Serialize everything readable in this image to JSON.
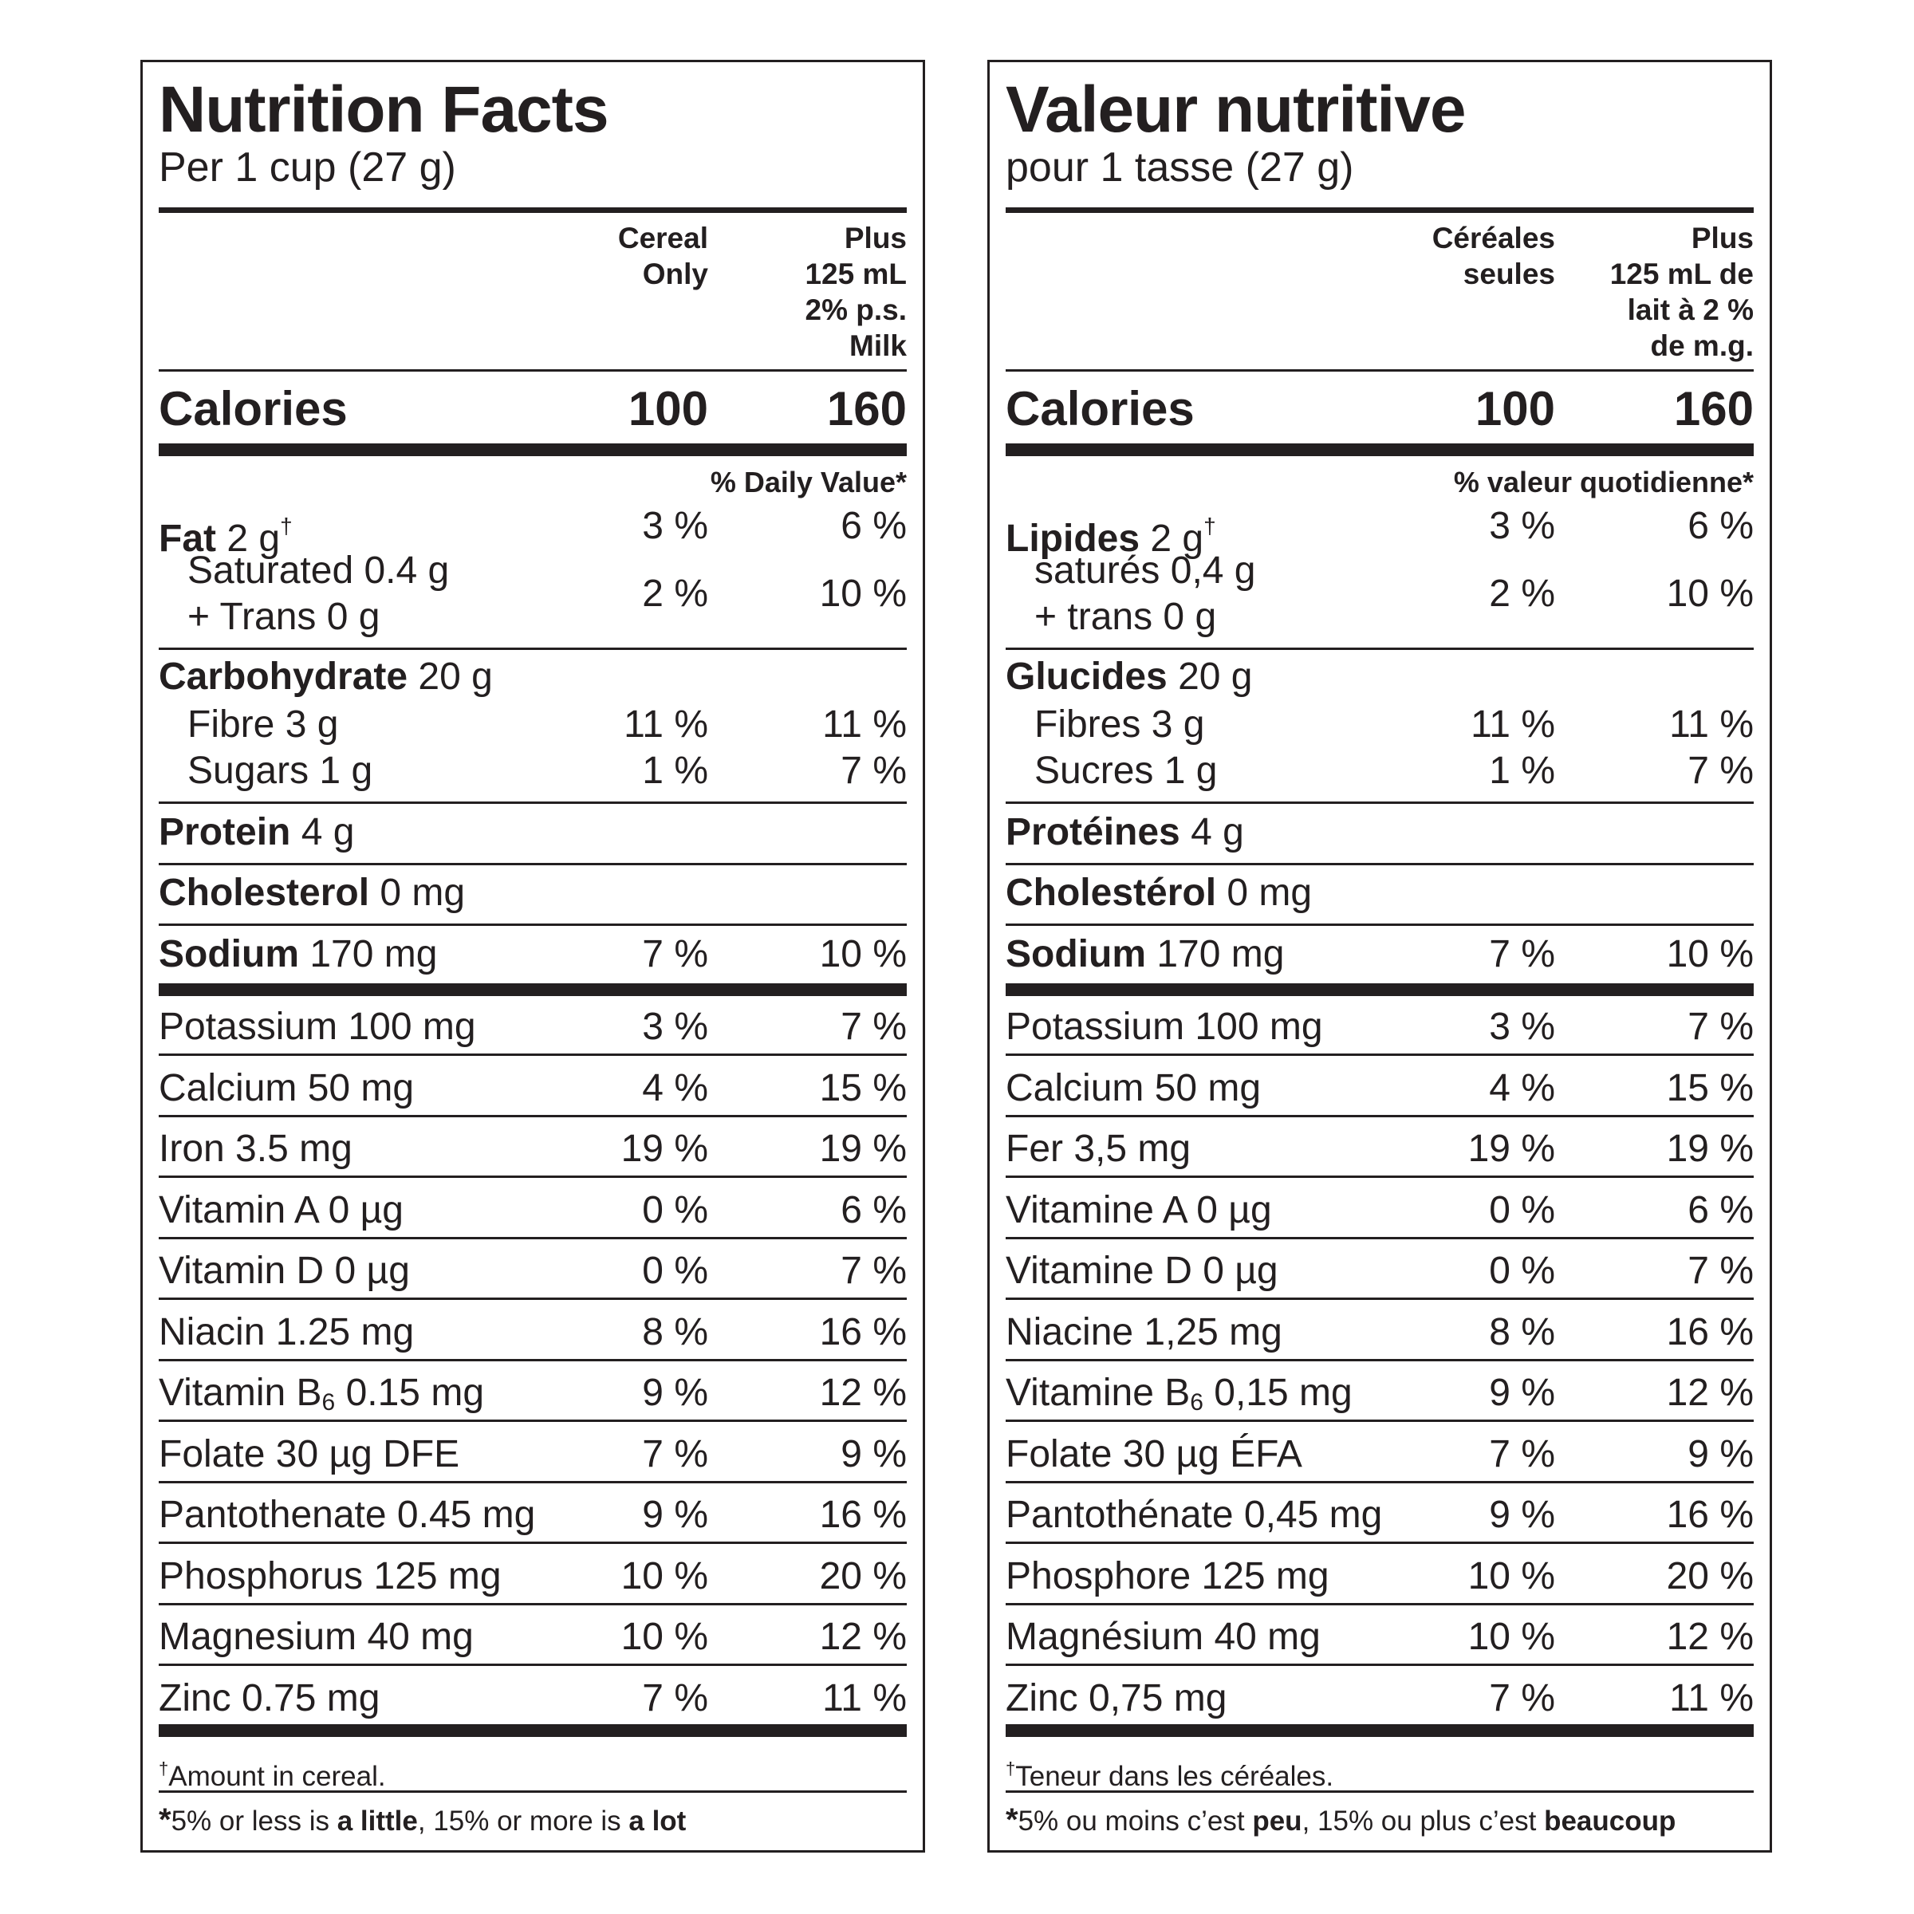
{
  "english": {
    "title": "Nutrition Facts",
    "serving": "Per 1 cup (27 g)",
    "col1_header": "Cereal\nOnly",
    "col2_header": "Plus\n125 mL\n2% p.s.\nMilk",
    "calories_label": "Calories",
    "calories_col1": "100",
    "calories_col2": "160",
    "dv_header": "% Daily Value*",
    "fat": {
      "label": "Fat",
      "amount": " 2 g",
      "dagger": "†",
      "col1": "3 %",
      "col2": "6 %"
    },
    "saturated": {
      "line1": "Saturated 0.4 g",
      "line2": "+ Trans 0 g",
      "col1": "2 %",
      "col2": "10 %"
    },
    "carbohydrate": {
      "label": "Carbohydrate",
      "amount": " 20 g"
    },
    "fibre": {
      "label": "Fibre 3 g",
      "col1": "11 %",
      "col2": "11 %"
    },
    "sugars": {
      "label": "Sugars 1 g",
      "col1": "1 %",
      "col2": "7 %"
    },
    "protein": {
      "label": "Protein",
      "amount": " 4 g"
    },
    "cholesterol": {
      "label": "Cholesterol",
      "amount": " 0 mg"
    },
    "sodium": {
      "label": "Sodium",
      "amount": " 170 mg",
      "col1": "7 %",
      "col2": "10 %"
    },
    "micros": [
      {
        "label": "Potassium 100 mg",
        "col1": "3 %",
        "col2": "7 %"
      },
      {
        "label": "Calcium 50 mg",
        "col1": "4 %",
        "col2": "15 %"
      },
      {
        "label": "Iron 3.5 mg",
        "col1": "19 %",
        "col2": "19 %"
      },
      {
        "label": "Vitamin A 0 µg",
        "col1": "0 %",
        "col2": "6 %"
      },
      {
        "label": "Vitamin D 0 µg",
        "col1": "0 %",
        "col2": "7 %"
      },
      {
        "label": "Niacin 1.25 mg",
        "col1": "8 %",
        "col2": "16 %"
      },
      {
        "label_pre": "Vitamin B",
        "label_sub": "6",
        "label_post": " 0.15 mg",
        "col1": "9 %",
        "col2": "12 %"
      },
      {
        "label": "Folate 30 µg DFE",
        "col1": "7 %",
        "col2": "9 %"
      },
      {
        "label": "Pantothenate 0.45 mg",
        "col1": "9 %",
        "col2": "16 %"
      },
      {
        "label": "Phosphorus 125 mg",
        "col1": "10 %",
        "col2": "20 %"
      },
      {
        "label": "Magnesium 40 mg",
        "col1": "10 %",
        "col2": "12 %"
      },
      {
        "label": "Zinc 0.75 mg",
        "col1": "7 %",
        "col2": "11 %"
      }
    ],
    "footnote_dagger": "†",
    "footnote_text": "Amount in cereal.",
    "dv_note": {
      "asterisk": "*",
      "t1": "5% or less is ",
      "b1": "a little",
      "t2": ", 15% or more is ",
      "b2": "a lot"
    }
  },
  "french": {
    "title": "Valeur nutritive",
    "serving": "pour 1 tasse (27 g)",
    "col1_header": "Céréales\nseules",
    "col2_header": "Plus\n125 mL de\nlait à 2 %\nde m.g.",
    "calories_label": "Calories",
    "calories_col1": "100",
    "calories_col2": "160",
    "dv_header": "% valeur quotidienne*",
    "fat": {
      "label": "Lipides",
      "amount": " 2 g",
      "dagger": "†",
      "col1": "3 %",
      "col2": "6 %"
    },
    "saturated": {
      "line1": "saturés 0,4 g",
      "line2": "+ trans 0 g",
      "col1": "2 %",
      "col2": "10 %"
    },
    "carbohydrate": {
      "label": "Glucides",
      "amount": " 20 g"
    },
    "fibre": {
      "label": "Fibres 3 g",
      "col1": "11 %",
      "col2": "11 %"
    },
    "sugars": {
      "label": "Sucres 1 g",
      "col1": "1 %",
      "col2": "7 %"
    },
    "protein": {
      "label": "Protéines",
      "amount": " 4 g"
    },
    "cholesterol": {
      "label": "Cholestérol",
      "amount": " 0 mg"
    },
    "sodium": {
      "label": "Sodium",
      "amount": " 170 mg",
      "col1": "7 %",
      "col2": "10 %"
    },
    "micros": [
      {
        "label": "Potassium 100 mg",
        "col1": "3 %",
        "col2": "7 %"
      },
      {
        "label": "Calcium 50 mg",
        "col1": "4 %",
        "col2": "15 %"
      },
      {
        "label": "Fer 3,5 mg",
        "col1": "19 %",
        "col2": "19 %"
      },
      {
        "label": "Vitamine A 0 µg",
        "col1": "0 %",
        "col2": "6 %"
      },
      {
        "label": "Vitamine D 0 µg",
        "col1": "0 %",
        "col2": "7 %"
      },
      {
        "label": "Niacine 1,25 mg",
        "col1": "8 %",
        "col2": "16 %"
      },
      {
        "label_pre": "Vitamine B",
        "label_sub": "6",
        "label_post": " 0,15 mg",
        "col1": "9 %",
        "col2": "12 %"
      },
      {
        "label": "Folate 30 µg ÉFA",
        "col1": "7 %",
        "col2": "9 %"
      },
      {
        "label": "Pantothénate 0,45 mg",
        "col1": "9 %",
        "col2": "16 %"
      },
      {
        "label": "Phosphore 125 mg",
        "col1": "10 %",
        "col2": "20 %"
      },
      {
        "label": "Magnésium 40 mg",
        "col1": "10 %",
        "col2": "12 %"
      },
      {
        "label": "Zinc 0,75 mg",
        "col1": "7 %",
        "col2": "11 %"
      }
    ],
    "footnote_dagger": "†",
    "footnote_text": "Teneur dans les céréales.",
    "dv_note": {
      "asterisk": "*",
      "t1": "5% ou moins c’est ",
      "b1": "peu",
      "t2": ", 15% ou plus c’est ",
      "b2": "beaucoup"
    }
  }
}
